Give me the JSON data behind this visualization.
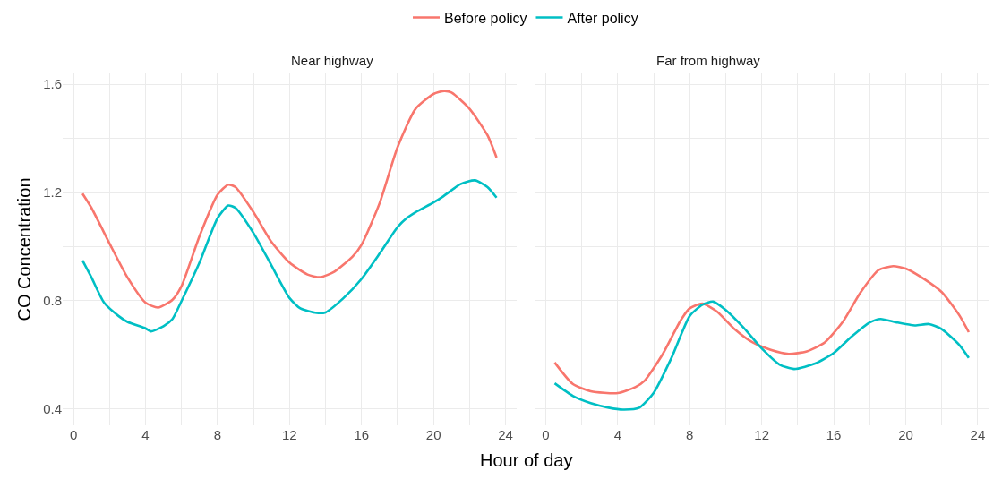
{
  "chart_data": [
    {
      "type": "line",
      "title": "Near highway",
      "xlabel": "Hour of day",
      "ylabel": "CO Concentration",
      "legend": "top",
      "grid": true,
      "marker": "none",
      "line_style": "solid",
      "xlim": [
        -0.6,
        24.6
      ],
      "ylim": [
        0.34,
        1.64
      ],
      "xticks": [
        0,
        {
          "value": 2,
          "label": null
        },
        4,
        {
          "value": 6,
          "label": null
        },
        8,
        {
          "value": 10,
          "label": null
        },
        12,
        {
          "value": 14,
          "label": null
        },
        16,
        {
          "value": 18,
          "label": null
        },
        20,
        {
          "value": 22,
          "label": null
        },
        24
      ],
      "yticks": [
        0.4,
        {
          "value": 0.6,
          "label": null
        },
        0.8,
        {
          "value": 1.0,
          "label": null
        },
        1.2,
        {
          "value": 1.4,
          "label": null
        },
        1.6
      ],
      "series": [
        {
          "name": "Before policy",
          "color": "#f8766d",
          "x": [
            0.5,
            1,
            2,
            3,
            4,
            4.7,
            5.5,
            6,
            7,
            8,
            8.6,
            9,
            10,
            11,
            12,
            13,
            13.7,
            14.5,
            15.5,
            16,
            17,
            18,
            19,
            20,
            20.6,
            21,
            22,
            23,
            23.5
          ],
          "values": [
            1.196,
            1.143,
            1.012,
            0.886,
            0.793,
            0.775,
            0.804,
            0.854,
            1.039,
            1.192,
            1.229,
            1.22,
            1.127,
            1.017,
            0.941,
            0.897,
            0.887,
            0.908,
            0.963,
            1.007,
            1.16,
            1.367,
            1.509,
            1.564,
            1.575,
            1.569,
            1.509,
            1.411,
            1.329
          ]
        },
        {
          "name": "After policy",
          "color": "#00bfc4",
          "x": [
            0.5,
            1,
            1.7,
            2.5,
            3,
            4,
            4.3,
            5,
            5.5,
            6,
            7,
            8,
            8.6,
            9,
            10,
            11,
            12,
            12.6,
            13.5,
            14,
            15,
            16,
            17,
            18,
            18.5,
            19,
            20,
            20.5,
            21.5,
            22.3,
            23,
            23.5
          ],
          "values": [
            0.949,
            0.886,
            0.793,
            0.744,
            0.722,
            0.698,
            0.687,
            0.706,
            0.733,
            0.799,
            0.941,
            1.105,
            1.152,
            1.143,
            1.05,
            0.93,
            0.81,
            0.772,
            0.755,
            0.757,
            0.81,
            0.881,
            0.974,
            1.072,
            1.105,
            1.127,
            1.163,
            1.184,
            1.231,
            1.245,
            1.22,
            1.181
          ]
        }
      ]
    },
    {
      "type": "line",
      "title": "Far from highway",
      "grid": true,
      "marker": "none",
      "line_style": "solid",
      "tick_labels": "x",
      "xlim": [
        -0.6,
        24.6
      ],
      "ylim": [
        0.34,
        1.64
      ],
      "xticks": [
        0,
        {
          "value": 2,
          "label": null
        },
        4,
        {
          "value": 6,
          "label": null
        },
        8,
        {
          "value": 10,
          "label": null
        },
        12,
        {
          "value": 14,
          "label": null
        },
        16,
        {
          "value": 18,
          "label": null
        },
        20,
        {
          "value": 22,
          "label": null
        },
        24
      ],
      "yticks": [
        0.4,
        {
          "value": 0.6,
          "label": null
        },
        0.8,
        {
          "value": 1.0,
          "label": null
        },
        1.2,
        {
          "value": 1.4,
          "label": null
        },
        1.6
      ],
      "series": [
        {
          "name": "Before policy",
          "color": "#f8766d",
          "x": [
            0.5,
            1.5,
            2.5,
            4,
            5,
            5.5,
            6.5,
            7.5,
            8,
            8.7,
            9.5,
            10.5,
            11.5,
            12.5,
            13.5,
            14.5,
            15.5,
            16.5,
            17.5,
            18.5,
            19.3,
            20,
            21,
            22,
            23,
            23.5
          ],
          "values": [
            0.572,
            0.493,
            0.466,
            0.459,
            0.482,
            0.505,
            0.603,
            0.728,
            0.772,
            0.79,
            0.761,
            0.695,
            0.646,
            0.619,
            0.604,
            0.613,
            0.646,
            0.722,
            0.832,
            0.914,
            0.928,
            0.919,
            0.881,
            0.832,
            0.744,
            0.684
          ]
        },
        {
          "name": "After policy",
          "color": "#00bfc4",
          "x": [
            0.5,
            1.5,
            2.5,
            3.5,
            4.3,
            5.2,
            6,
            7,
            8,
            8.7,
            9.3,
            10,
            11,
            12,
            13,
            13.8,
            15,
            16,
            17,
            18,
            18.6,
            19.5,
            20.5,
            21.3,
            22,
            23,
            23.5
          ],
          "values": [
            0.495,
            0.449,
            0.422,
            0.405,
            0.398,
            0.405,
            0.46,
            0.591,
            0.744,
            0.785,
            0.797,
            0.766,
            0.7,
            0.624,
            0.564,
            0.548,
            0.569,
            0.607,
            0.668,
            0.72,
            0.733,
            0.72,
            0.709,
            0.714,
            0.695,
            0.635,
            0.589
          ]
        }
      ]
    }
  ]
}
